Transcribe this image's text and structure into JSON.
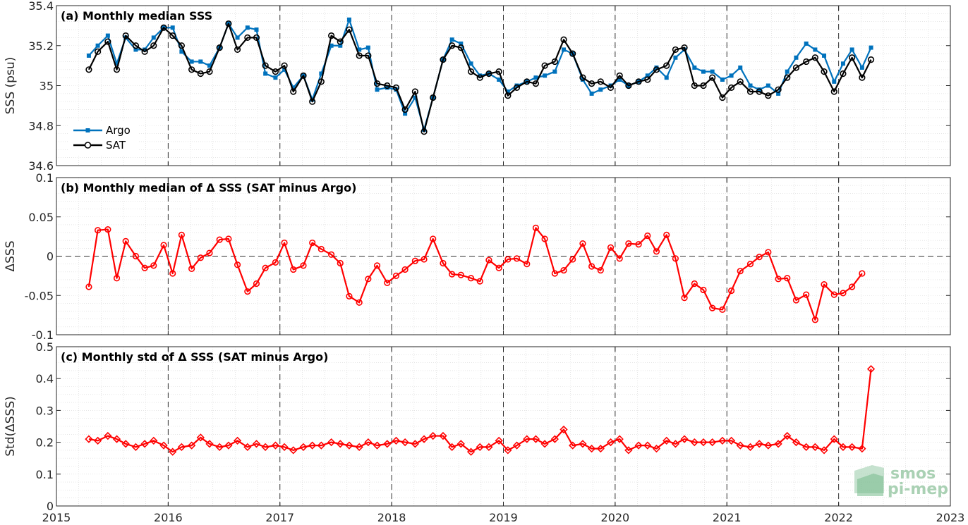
{
  "chart_data": [
    {
      "type": "line",
      "title": "(a) Monthly median SSS",
      "ylabel": "SSS (psu)",
      "xlim": [
        2015,
        2023
      ],
      "ylim": [
        34.6,
        35.4
      ],
      "yticks": [
        "34.6",
        "34.8",
        "35",
        "35.2",
        "35.4"
      ],
      "grid": "minor dotted",
      "legend_position": "bottom-left",
      "x": [
        2015.29,
        2015.37,
        2015.46,
        2015.54,
        2015.62,
        2015.71,
        2015.79,
        2015.87,
        2015.96,
        2016.04,
        2016.12,
        2016.21,
        2016.29,
        2016.37,
        2016.46,
        2016.54,
        2016.62,
        2016.71,
        2016.79,
        2016.87,
        2016.96,
        2017.04,
        2017.12,
        2017.21,
        2017.29,
        2017.37,
        2017.46,
        2017.54,
        2017.62,
        2017.71,
        2017.79,
        2017.87,
        2017.96,
        2018.04,
        2018.12,
        2018.21,
        2018.29,
        2018.37,
        2018.46,
        2018.54,
        2018.62,
        2018.71,
        2018.79,
        2018.87,
        2018.96,
        2019.04,
        2019.12,
        2019.21,
        2019.29,
        2019.37,
        2019.46,
        2019.54,
        2019.62,
        2019.71,
        2019.79,
        2019.87,
        2019.96,
        2020.04,
        2020.12,
        2020.21,
        2020.29,
        2020.37,
        2020.46,
        2020.54,
        2020.62,
        2020.71,
        2020.79,
        2020.87,
        2020.96,
        2021.04,
        2021.12,
        2021.21,
        2021.29,
        2021.37,
        2021.46,
        2021.54,
        2021.62,
        2021.71,
        2021.79,
        2021.87,
        2021.96,
        2022.04,
        2022.12,
        2022.21,
        2022.29
      ],
      "series": [
        {
          "name": "Argo",
          "color": "#0072bd",
          "marker": "square",
          "values": [
            35.15,
            35.2,
            35.25,
            35.11,
            35.24,
            35.18,
            35.18,
            35.24,
            35.29,
            35.29,
            35.17,
            35.12,
            35.12,
            35.1,
            35.19,
            35.31,
            35.24,
            35.29,
            35.28,
            35.06,
            35.04,
            35.08,
            34.99,
            35.05,
            34.93,
            35.06,
            35.2,
            35.2,
            35.33,
            35.18,
            35.19,
            34.98,
            34.99,
            34.98,
            34.86,
            34.94,
            34.78,
            34.94,
            35.13,
            35.23,
            35.21,
            35.11,
            35.05,
            35.06,
            35.03,
            34.97,
            35.0,
            35.02,
            35.04,
            35.05,
            35.07,
            35.18,
            35.16,
            35.03,
            34.96,
            34.98,
            35.0,
            35.03,
            35.0,
            35.02,
            35.05,
            35.09,
            35.04,
            35.14,
            35.18,
            35.09,
            35.07,
            35.07,
            35.03,
            35.05,
            35.09,
            35.0,
            34.98,
            35.0,
            34.96,
            35.07,
            35.14,
            35.21,
            35.18,
            35.15,
            35.02,
            35.11,
            35.18,
            35.09,
            35.19
          ]
        },
        {
          "name": "SAT",
          "color": "#000000",
          "marker": "circle",
          "values": [
            35.08,
            35.17,
            35.22,
            35.08,
            35.25,
            35.2,
            35.17,
            35.2,
            35.29,
            35.25,
            35.2,
            35.08,
            35.06,
            35.07,
            35.19,
            35.31,
            35.18,
            35.24,
            35.24,
            35.1,
            35.07,
            35.1,
            34.97,
            35.05,
            34.92,
            35.02,
            35.25,
            35.22,
            35.28,
            35.15,
            35.15,
            35.01,
            35.0,
            34.99,
            34.88,
            34.97,
            34.77,
            34.94,
            35.13,
            35.2,
            35.19,
            35.07,
            35.04,
            35.06,
            35.07,
            34.95,
            34.99,
            35.02,
            35.01,
            35.1,
            35.12,
            35.23,
            35.16,
            35.04,
            35.01,
            35.02,
            34.99,
            35.05,
            35.0,
            35.02,
            35.03,
            35.08,
            35.1,
            35.18,
            35.19,
            35.0,
            35.0,
            35.04,
            34.94,
            34.99,
            35.02,
            34.97,
            34.97,
            34.95,
            34.98,
            35.04,
            35.09,
            35.12,
            35.14,
            35.07,
            34.97,
            35.06,
            35.14,
            35.04,
            35.13
          ]
        }
      ]
    },
    {
      "type": "line",
      "title": "(b) Monthly median of Δ SSS (SAT minus Argo)",
      "ylabel": "ΔSSS",
      "xlim": [
        2015,
        2023
      ],
      "ylim": [
        -0.1,
        0.1
      ],
      "yticks": [
        "-0.1",
        "-0.05",
        "0",
        "0.05",
        "0.1"
      ],
      "reference_line": 0,
      "series": [
        {
          "color": "#ff0000",
          "marker": "circle",
          "values": [
            -0.039,
            0.033,
            0.034,
            -0.028,
            0.019,
            0.0,
            -0.015,
            -0.012,
            0.014,
            -0.022,
            0.027,
            -0.016,
            -0.002,
            0.004,
            0.021,
            0.022,
            -0.011,
            -0.045,
            -0.035,
            -0.015,
            -0.008,
            0.017,
            -0.017,
            -0.012,
            0.017,
            0.009,
            0.002,
            -0.009,
            -0.051,
            -0.059,
            -0.029,
            -0.012,
            -0.034,
            -0.025,
            -0.017,
            -0.006,
            -0.004,
            0.022,
            -0.009,
            -0.023,
            -0.024,
            -0.028,
            -0.032,
            -0.005,
            -0.015,
            -0.004,
            -0.003,
            -0.01,
            0.036,
            0.022,
            -0.022,
            -0.018,
            -0.004,
            0.016,
            -0.013,
            -0.018,
            0.011,
            -0.003,
            0.016,
            0.015,
            0.026,
            0.006,
            0.027,
            -0.003,
            -0.053,
            -0.035,
            -0.043,
            -0.066,
            -0.068,
            -0.044,
            -0.019,
            -0.01,
            -0.001,
            0.005,
            -0.029,
            -0.028,
            -0.056,
            -0.049,
            -0.081,
            -0.036,
            -0.049,
            -0.047,
            -0.039,
            -0.022
          ]
        }
      ]
    },
    {
      "type": "line",
      "title": "(c) Monthly std of Δ SSS (SAT minus Argo)",
      "ylabel": "Std(ΔSSS)",
      "xlim": [
        2015,
        2023
      ],
      "ylim": [
        0,
        0.5
      ],
      "yticks": [
        "0",
        "0.1",
        "0.2",
        "0.3",
        "0.4",
        "0.5"
      ],
      "xticks": [
        "2015",
        "2016",
        "2017",
        "2018",
        "2019",
        "2020",
        "2021",
        "2022",
        "2023"
      ],
      "series": [
        {
          "color": "#ff0000",
          "marker": "diamond",
          "values": [
            0.21,
            0.205,
            0.22,
            0.21,
            0.195,
            0.185,
            0.195,
            0.205,
            0.19,
            0.17,
            0.185,
            0.19,
            0.215,
            0.195,
            0.185,
            0.19,
            0.205,
            0.185,
            0.195,
            0.185,
            0.19,
            0.185,
            0.175,
            0.185,
            0.19,
            0.19,
            0.2,
            0.195,
            0.19,
            0.185,
            0.2,
            0.19,
            0.195,
            0.205,
            0.2,
            0.195,
            0.21,
            0.22,
            0.22,
            0.185,
            0.195,
            0.17,
            0.185,
            0.185,
            0.205,
            0.175,
            0.19,
            0.21,
            0.21,
            0.195,
            0.21,
            0.24,
            0.19,
            0.195,
            0.18,
            0.18,
            0.2,
            0.21,
            0.175,
            0.19,
            0.19,
            0.18,
            0.205,
            0.195,
            0.21,
            0.2,
            0.2,
            0.2,
            0.205,
            0.205,
            0.19,
            0.185,
            0.195,
            0.19,
            0.195,
            0.22,
            0.2,
            0.185,
            0.185,
            0.175,
            0.21,
            0.185,
            0.185,
            0.18,
            0.43
          ]
        }
      ]
    }
  ],
  "logo": {
    "line1": "smos",
    "line2": "pi-mep"
  }
}
